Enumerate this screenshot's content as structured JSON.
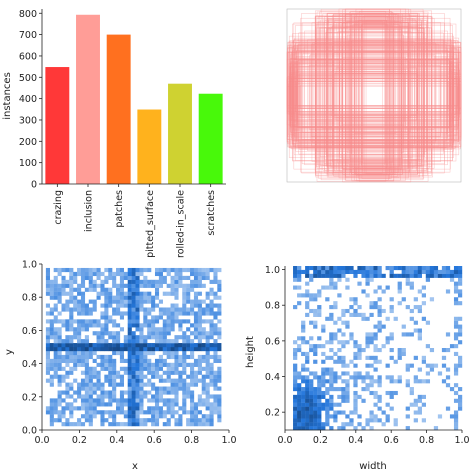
{
  "chart_data": [
    {
      "type": "bar",
      "panel": "instances-per-class",
      "categories": [
        "crazing",
        "inclusion",
        "patches",
        "pitted_surface",
        "rolled-in_scale",
        "scratches"
      ],
      "values": [
        548,
        793,
        700,
        349,
        470,
        423
      ],
      "colors": [
        "#ff3838",
        "#ff9d97",
        "#ff701f",
        "#ffb21d",
        "#cfd231",
        "#48f90a"
      ],
      "ylabel": "instances",
      "yticks": [
        0,
        100,
        200,
        300,
        400,
        500,
        600,
        700,
        800
      ],
      "ylim": [
        0,
        820
      ]
    },
    {
      "type": "scatter",
      "panel": "box-outlines",
      "description_color": "#f88c8c",
      "grid": false
    },
    {
      "type": "heatmap",
      "panel": "xy-distribution",
      "xlabel": "x",
      "ylabel": "y",
      "xticks": [
        "0.0",
        "0.2",
        "0.4",
        "0.6",
        "0.8",
        "1.0"
      ],
      "yticks": [
        "0.0",
        "0.2",
        "0.4",
        "0.6",
        "0.8",
        "1.0"
      ],
      "xlim": [
        0,
        1
      ],
      "ylim": [
        0,
        1
      ],
      "color": "#2a6fd0"
    },
    {
      "type": "heatmap",
      "panel": "wh-distribution",
      "xlabel": "width",
      "ylabel": "height",
      "xticks": [
        "0.0",
        "0.2",
        "0.4",
        "0.6",
        "0.8",
        "1.0"
      ],
      "yticks": [
        "0.2",
        "0.4",
        "0.6",
        "0.8",
        "1.0"
      ],
      "xlim": [
        0,
        1
      ],
      "ylim": [
        0.1,
        1.02
      ],
      "color": "#2a6fd0"
    }
  ]
}
